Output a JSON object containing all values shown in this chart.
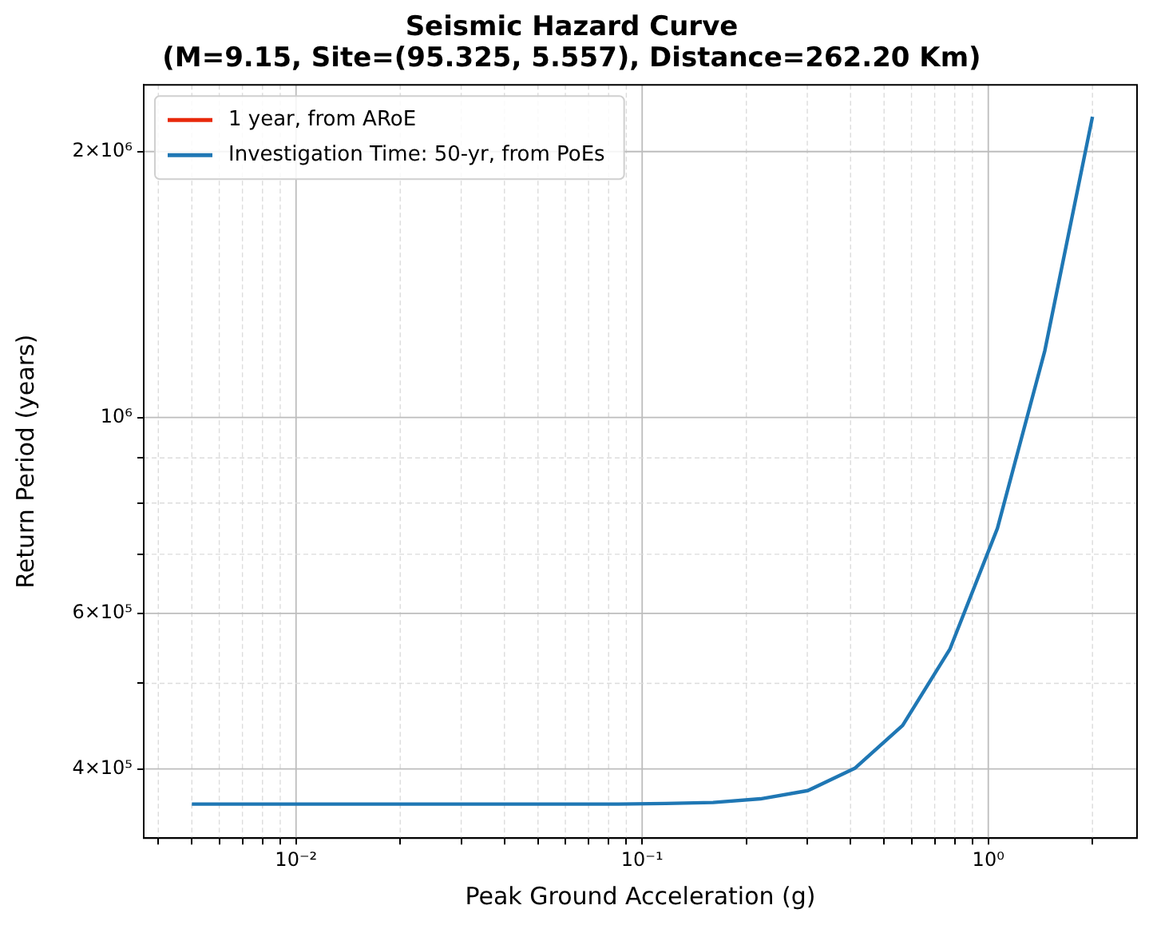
{
  "chart_data": {
    "type": "line",
    "title": "Seismic Hazard Curve\n(M=9.15, Site=(95.325, 5.557), Distance=262.20 Km)",
    "xlabel": "Peak Ground Acceleration (g)",
    "ylabel": "Return Period (years)",
    "x": [
      0.005,
      0.00685,
      0.00939,
      0.01287,
      0.01764,
      0.02418,
      0.03314,
      0.04542,
      0.06226,
      0.08533,
      0.117,
      0.1603,
      0.2197,
      0.3011,
      0.4127,
      0.5657,
      0.7753,
      1.0627,
      1.4565,
      2.0
    ],
    "series": [
      {
        "name": "1 year, from ARoE",
        "color": "#e8290b",
        "values": [
          null,
          null,
          null,
          null,
          null,
          null,
          null,
          null,
          null,
          null,
          null,
          null,
          null,
          null,
          null,
          null,
          null,
          null,
          null,
          null
        ]
      },
      {
        "name": "Investigation Time: 50-yr, from PoEs",
        "color": "#1f77b4",
        "values": [
          365000,
          365000,
          365000,
          365000,
          365000,
          365000,
          365000,
          365000,
          365000,
          365000,
          365500,
          366500,
          370000,
          378000,
          401000,
          448000,
          547000,
          749000,
          1190000,
          2190000
        ]
      }
    ],
    "log": "xy",
    "xlim": [
      0.00363,
      2.69
    ],
    "ylim": [
      334000,
      2380000
    ],
    "xticks": [
      {
        "value": 0.004,
        "label": null
      },
      {
        "value": 0.005,
        "label": null
      },
      {
        "value": 0.006,
        "label": null
      },
      {
        "value": 0.007,
        "label": null
      },
      {
        "value": 0.008,
        "label": null
      },
      {
        "value": 0.009,
        "label": null
      },
      {
        "value": 0.01,
        "label": "10⁻²"
      },
      {
        "value": 0.02,
        "label": null
      },
      {
        "value": 0.03,
        "label": null
      },
      {
        "value": 0.04,
        "label": null
      },
      {
        "value": 0.05,
        "label": null
      },
      {
        "value": 0.06,
        "label": null
      },
      {
        "value": 0.07,
        "label": null
      },
      {
        "value": 0.08,
        "label": null
      },
      {
        "value": 0.09,
        "label": null
      },
      {
        "value": 0.1,
        "label": "10⁻¹"
      },
      {
        "value": 0.2,
        "label": null
      },
      {
        "value": 0.3,
        "label": null
      },
      {
        "value": 0.4,
        "label": null
      },
      {
        "value": 0.5,
        "label": null
      },
      {
        "value": 0.6,
        "label": null
      },
      {
        "value": 0.7,
        "label": null
      },
      {
        "value": 0.8,
        "label": null
      },
      {
        "value": 0.9,
        "label": null
      },
      {
        "value": 1,
        "label": "10⁰"
      },
      {
        "value": 2,
        "label": null
      }
    ],
    "yticks": [
      {
        "value": 400000,
        "label": "4×10⁵"
      },
      {
        "value": 500000,
        "label": null
      },
      {
        "value": 600000,
        "label": "6×10⁵"
      },
      {
        "value": 700000,
        "label": null
      },
      {
        "value": 800000,
        "label": null
      },
      {
        "value": 900000,
        "label": null
      },
      {
        "value": 1000000,
        "label": "10⁶"
      },
      {
        "value": 2000000,
        "label": "2×10⁶"
      }
    ],
    "grid": true,
    "legend": "top left",
    "marker": "none",
    "line_style": "solid"
  }
}
